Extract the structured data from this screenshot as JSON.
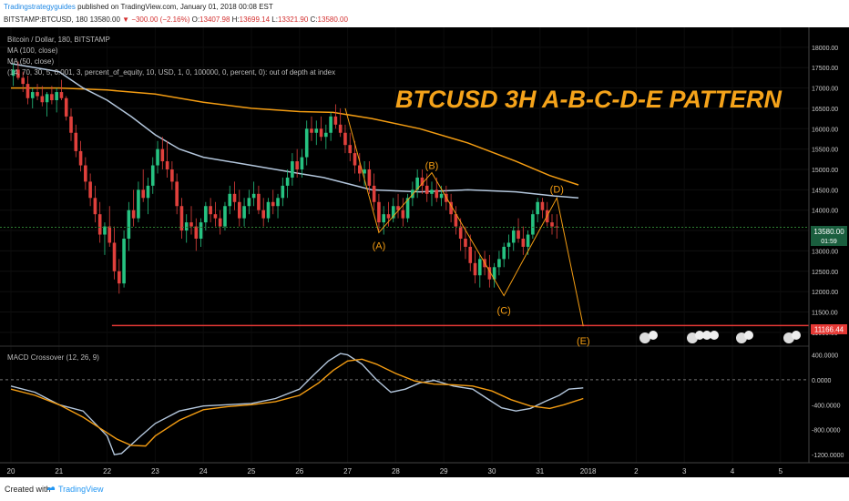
{
  "header": {
    "author": "Tradingstrategyguides",
    "published": "published on TradingView.com, January 01, 2018 00:08 EST",
    "symbol": "BITSTAMP:BTCUSD, 180",
    "last": "13580.00",
    "change": "▼ −300.00 (−2.16%)",
    "o_label": "O:",
    "o_val": "13407.98",
    "h_label": "H:",
    "h_val": "13699.14",
    "l_label": "L:",
    "l_val": "13321.90",
    "c_label": "C:",
    "c_val": "13580.00"
  },
  "legend": {
    "title": "Bitcoin / Dollar, 180, BITSTAMP",
    "ma100": "MA (100, close)",
    "ma50": "MA (50, close)",
    "strategy": "(14, 70, 30, 5, 0.001, 3, percent_of_equity, 10, USD, 1, 0, 100000, 0, percent, 0): out of depth at index"
  },
  "pattern_title": "BTCUSD 3H A-B-C-D-E PATTERN",
  "points": {
    "A": "(A)",
    "B": "(B)",
    "C": "(C)",
    "D": "(D)",
    "E": "(E)"
  },
  "macd_label": "MACD Crossover (12, 26, 9)",
  "price_badge": "13580.00",
  "price_badge_sub": "01:59",
  "support_badge": "11166.44",
  "footer": {
    "created": "Created with",
    "brand": "TradingView"
  },
  "colors": {
    "bull": "#26c281",
    "bear": "#e0403c",
    "ma100": "#f39c12",
    "ma50": "#b3c6dc",
    "pattern": "#f39c12",
    "support": "#e53935",
    "accent": "#f5a31a"
  },
  "chart_data": {
    "type": "candlestick",
    "x_ticks": [
      "20",
      "21",
      "22",
      "23",
      "24",
      "25",
      "26",
      "27",
      "28",
      "29",
      "30",
      "31",
      "2018",
      "2",
      "3",
      "4",
      "5"
    ],
    "price_ticks": [
      "18000.00",
      "17500.00",
      "17000.00",
      "16500.00",
      "16000.00",
      "15500.00",
      "15000.00",
      "14500.00",
      "14000.00",
      "13500.00",
      "13000.00",
      "12500.00",
      "12000.00",
      "11500.00",
      "11000.00"
    ],
    "macd_ticks": [
      "400.0000",
      "0.0000",
      "-400.0000",
      "-800.0000",
      "-1200.0000"
    ],
    "price_range": [
      10750,
      18400
    ],
    "macd_range": [
      -1300,
      480
    ],
    "support_level": 11166.44,
    "current_price": 13580,
    "pattern_points": [
      {
        "label": "A",
        "x": 27.65,
        "price": 13450
      },
      {
        "label": "B",
        "x": 28.75,
        "price": 14920
      },
      {
        "label": "C",
        "x": 30.25,
        "price": 11900
      },
      {
        "label": "D",
        "x": 31.35,
        "price": 14300
      },
      {
        "label": "E",
        "x": 31.9,
        "price": 11150
      }
    ],
    "ma100": [
      [
        20.0,
        17000
      ],
      [
        21.0,
        17000
      ],
      [
        22.0,
        16950
      ],
      [
        23.0,
        16850
      ],
      [
        24.0,
        16650
      ],
      [
        25.0,
        16500
      ],
      [
        26.0,
        16420
      ],
      [
        26.7,
        16400
      ],
      [
        27.5,
        16250
      ],
      [
        28.5,
        16000
      ],
      [
        29.5,
        15650
      ],
      [
        30.5,
        15200
      ],
      [
        31.2,
        14850
      ],
      [
        31.8,
        14620
      ]
    ],
    "ma50": [
      [
        20.0,
        17600
      ],
      [
        21.0,
        17400
      ],
      [
        21.5,
        17000
      ],
      [
        22.0,
        16700
      ],
      [
        22.5,
        16300
      ],
      [
        23.0,
        15850
      ],
      [
        23.5,
        15500
      ],
      [
        24.0,
        15300
      ],
      [
        25.0,
        15100
      ],
      [
        26.0,
        14900
      ],
      [
        26.5,
        14800
      ],
      [
        27.0,
        14650
      ],
      [
        27.5,
        14500
      ],
      [
        28.5,
        14450
      ],
      [
        29.5,
        14500
      ],
      [
        30.5,
        14450
      ],
      [
        31.3,
        14350
      ],
      [
        31.8,
        14300
      ]
    ],
    "macd": [
      [
        20.0,
        -100
      ],
      [
        20.5,
        -200
      ],
      [
        21.0,
        -400
      ],
      [
        21.5,
        -500
      ],
      [
        22.0,
        -900
      ],
      [
        22.15,
        -1200
      ],
      [
        22.3,
        -1180
      ],
      [
        22.7,
        -900
      ],
      [
        23.0,
        -700
      ],
      [
        23.5,
        -500
      ],
      [
        24.0,
        -420
      ],
      [
        24.5,
        -400
      ],
      [
        25.0,
        -380
      ],
      [
        25.5,
        -300
      ],
      [
        26.0,
        -150
      ],
      [
        26.3,
        80
      ],
      [
        26.6,
        300
      ],
      [
        26.85,
        420
      ],
      [
        27.0,
        400
      ],
      [
        27.3,
        250
      ],
      [
        27.6,
        0
      ],
      [
        27.9,
        -200
      ],
      [
        28.2,
        -150
      ],
      [
        28.5,
        -50
      ],
      [
        28.8,
        -10
      ],
      [
        29.2,
        -100
      ],
      [
        29.6,
        -150
      ],
      [
        29.9,
        -300
      ],
      [
        30.2,
        -450
      ],
      [
        30.5,
        -500
      ],
      [
        30.8,
        -460
      ],
      [
        31.1,
        -350
      ],
      [
        31.4,
        -250
      ],
      [
        31.6,
        -150
      ],
      [
        31.9,
        -130
      ]
    ],
    "signal": [
      [
        20.0,
        -150
      ],
      [
        20.5,
        -250
      ],
      [
        21.0,
        -400
      ],
      [
        21.5,
        -600
      ],
      [
        21.9,
        -800
      ],
      [
        22.2,
        -950
      ],
      [
        22.5,
        -1050
      ],
      [
        22.8,
        -1060
      ],
      [
        23.0,
        -900
      ],
      [
        23.5,
        -650
      ],
      [
        24.0,
        -480
      ],
      [
        24.5,
        -430
      ],
      [
        25.0,
        -400
      ],
      [
        25.5,
        -350
      ],
      [
        26.0,
        -250
      ],
      [
        26.4,
        -50
      ],
      [
        26.7,
        150
      ],
      [
        27.0,
        300
      ],
      [
        27.3,
        330
      ],
      [
        27.6,
        250
      ],
      [
        28.0,
        100
      ],
      [
        28.4,
        -20
      ],
      [
        28.8,
        -70
      ],
      [
        29.2,
        -80
      ],
      [
        29.6,
        -100
      ],
      [
        30.0,
        -180
      ],
      [
        30.4,
        -320
      ],
      [
        30.8,
        -420
      ],
      [
        31.2,
        -460
      ],
      [
        31.5,
        -400
      ],
      [
        31.9,
        -300
      ]
    ],
    "candles": [
      [
        20.05,
        17300,
        17600,
        17050,
        17450
      ],
      [
        20.15,
        17450,
        17650,
        17200,
        17250
      ],
      [
        20.25,
        17250,
        17400,
        16900,
        17100
      ],
      [
        20.35,
        17100,
        17300,
        16600,
        16750
      ],
      [
        20.45,
        16750,
        17000,
        16500,
        16900
      ],
      [
        20.55,
        16900,
        17100,
        16700,
        16800
      ],
      [
        20.65,
        16800,
        17050,
        16550,
        16650
      ],
      [
        20.75,
        16650,
        16900,
        16300,
        16850
      ],
      [
        20.85,
        16850,
        17050,
        16600,
        16700
      ],
      [
        20.95,
        16700,
        17000,
        16400,
        16900
      ],
      [
        21.05,
        16900,
        17200,
        16700,
        16750
      ],
      [
        21.15,
        16750,
        16800,
        16200,
        16300
      ],
      [
        21.25,
        16300,
        16500,
        15700,
        15900
      ],
      [
        21.35,
        15900,
        16100,
        15300,
        15450
      ],
      [
        21.45,
        15450,
        15700,
        14950,
        15100
      ],
      [
        21.55,
        15100,
        15300,
        14500,
        14700
      ],
      [
        21.65,
        14700,
        14900,
        14100,
        14300
      ],
      [
        21.75,
        14300,
        14600,
        13700,
        13900
      ],
      [
        21.85,
        13900,
        14200,
        13200,
        13400
      ],
      [
        21.95,
        13400,
        13700,
        12900,
        13600
      ],
      [
        22.05,
        13600,
        14100,
        13100,
        13200
      ],
      [
        22.15,
        13200,
        13600,
        12300,
        12500
      ],
      [
        22.25,
        12500,
        12800,
        11950,
        12200
      ],
      [
        22.35,
        12200,
        13500,
        12100,
        13300
      ],
      [
        22.45,
        13300,
        14200,
        13000,
        14000
      ],
      [
        22.55,
        14000,
        14500,
        13600,
        13800
      ],
      [
        22.65,
        13800,
        14700,
        13700,
        14500
      ],
      [
        22.75,
        14500,
        15000,
        14200,
        14300
      ],
      [
        22.85,
        14300,
        14800,
        13900,
        14600
      ],
      [
        22.95,
        14600,
        15300,
        14400,
        15100
      ],
      [
        23.05,
        15100,
        15700,
        14900,
        15500
      ],
      [
        23.15,
        15500,
        15800,
        15000,
        15200
      ],
      [
        23.25,
        15200,
        15700,
        14800,
        15000
      ],
      [
        23.35,
        15000,
        15200,
        14500,
        14700
      ],
      [
        23.45,
        14700,
        14900,
        13900,
        14100
      ],
      [
        23.55,
        14100,
        14300,
        13300,
        13500
      ],
      [
        23.65,
        13500,
        13900,
        13200,
        13700
      ],
      [
        23.75,
        13700,
        14100,
        13400,
        13600
      ],
      [
        23.85,
        13600,
        13800,
        13000,
        13300
      ],
      [
        23.95,
        13300,
        13800,
        13100,
        13700
      ],
      [
        24.05,
        13700,
        14200,
        13500,
        14100
      ],
      [
        24.15,
        14100,
        14300,
        13700,
        13900
      ],
      [
        24.25,
        13900,
        14200,
        13600,
        13800
      ],
      [
        24.35,
        13800,
        14000,
        13400,
        13600
      ],
      [
        24.45,
        13600,
        14200,
        13500,
        14100
      ],
      [
        24.55,
        14100,
        14600,
        13900,
        14400
      ],
      [
        24.65,
        14400,
        14700,
        14000,
        14200
      ],
      [
        24.75,
        14200,
        14500,
        13600,
        13800
      ],
      [
        24.85,
        13800,
        14300,
        13600,
        14100
      ],
      [
        24.95,
        14100,
        14500,
        13900,
        14300
      ],
      [
        25.05,
        14300,
        14700,
        14100,
        14400
      ],
      [
        25.15,
        14400,
        14600,
        13900,
        14000
      ],
      [
        25.25,
        14000,
        14300,
        13600,
        13800
      ],
      [
        25.35,
        13800,
        14300,
        13700,
        14200
      ],
      [
        25.45,
        14200,
        14500,
        13900,
        14100
      ],
      [
        25.55,
        14100,
        14400,
        13800,
        14300
      ],
      [
        25.65,
        14300,
        14800,
        14100,
        14600
      ],
      [
        25.75,
        14600,
        15000,
        14300,
        14800
      ],
      [
        25.85,
        14800,
        15400,
        14600,
        15200
      ],
      [
        25.95,
        15200,
        15500,
        14800,
        15000
      ],
      [
        26.05,
        15000,
        15500,
        14800,
        15300
      ],
      [
        26.15,
        15300,
        16200,
        15100,
        16000
      ],
      [
        26.25,
        16000,
        16300,
        15700,
        15900
      ],
      [
        26.35,
        15900,
        16200,
        15600,
        16000
      ],
      [
        26.45,
        16000,
        16300,
        15700,
        15800
      ],
      [
        26.55,
        15800,
        16100,
        15500,
        15900
      ],
      [
        26.65,
        15900,
        16400,
        15700,
        16300
      ],
      [
        26.75,
        16300,
        16600,
        16000,
        16100
      ],
      [
        26.85,
        16100,
        16500,
        15800,
        15900
      ],
      [
        26.95,
        15900,
        16100,
        15400,
        15600
      ],
      [
        27.05,
        15600,
        15900,
        15200,
        15400
      ],
      [
        27.15,
        15400,
        15700,
        14900,
        15100
      ],
      [
        27.25,
        15100,
        15400,
        14700,
        14900
      ],
      [
        27.35,
        14900,
        15200,
        14600,
        15000
      ],
      [
        27.45,
        15000,
        15200,
        14400,
        14600
      ],
      [
        27.55,
        14600,
        14900,
        14000,
        14200
      ],
      [
        27.65,
        14200,
        14400,
        13500,
        13700
      ],
      [
        27.75,
        13700,
        14100,
        13400,
        13900
      ],
      [
        27.85,
        13900,
        14200,
        13600,
        13800
      ],
      [
        27.95,
        13800,
        14300,
        13700,
        14100
      ],
      [
        28.05,
        14100,
        14400,
        13800,
        14000
      ],
      [
        28.15,
        14000,
        14300,
        13600,
        13800
      ],
      [
        28.25,
        13800,
        14400,
        13700,
        14300
      ],
      [
        28.35,
        14300,
        14700,
        14100,
        14500
      ],
      [
        28.45,
        14500,
        15000,
        14300,
        14800
      ],
      [
        28.55,
        14800,
        15000,
        14400,
        14600
      ],
      [
        28.65,
        14600,
        14900,
        14200,
        14400
      ],
      [
        28.75,
        14400,
        14700,
        14100,
        14500
      ],
      [
        28.85,
        14500,
        14800,
        14200,
        14300
      ],
      [
        28.95,
        14300,
        14600,
        14100,
        14400
      ],
      [
        29.05,
        14400,
        14600,
        14000,
        14200
      ],
      [
        29.15,
        14200,
        14400,
        13700,
        13900
      ],
      [
        29.25,
        13900,
        14100,
        13400,
        13600
      ],
      [
        29.35,
        13600,
        13800,
        13000,
        13300
      ],
      [
        29.45,
        13300,
        13600,
        12800,
        13100
      ],
      [
        29.55,
        13100,
        13400,
        12500,
        12700
      ],
      [
        29.65,
        12700,
        13000,
        12200,
        12400
      ],
      [
        29.75,
        12400,
        12900,
        12100,
        12800
      ],
      [
        29.85,
        12800,
        13000,
        12400,
        12600
      ],
      [
        29.95,
        12600,
        12900,
        12100,
        12300
      ],
      [
        30.05,
        12300,
        12700,
        12100,
        12600
      ],
      [
        30.15,
        12600,
        13000,
        12400,
        12800
      ],
      [
        30.25,
        12800,
        13200,
        12600,
        13100
      ],
      [
        30.35,
        13100,
        13400,
        12800,
        13200
      ],
      [
        30.45,
        13200,
        13600,
        13000,
        13500
      ],
      [
        30.55,
        13500,
        13800,
        13200,
        13300
      ],
      [
        30.65,
        13300,
        13600,
        12900,
        13100
      ],
      [
        30.75,
        13100,
        13500,
        12900,
        13400
      ],
      [
        30.85,
        13400,
        14000,
        13300,
        13900
      ],
      [
        30.95,
        13900,
        14300,
        13700,
        14200
      ],
      [
        31.05,
        14200,
        14300,
        13800,
        14000
      ],
      [
        31.15,
        14000,
        14200,
        13600,
        13700
      ],
      [
        31.25,
        13700,
        13900,
        13400,
        13600
      ],
      [
        31.35,
        13600,
        13900,
        13300,
        13580
      ]
    ]
  }
}
